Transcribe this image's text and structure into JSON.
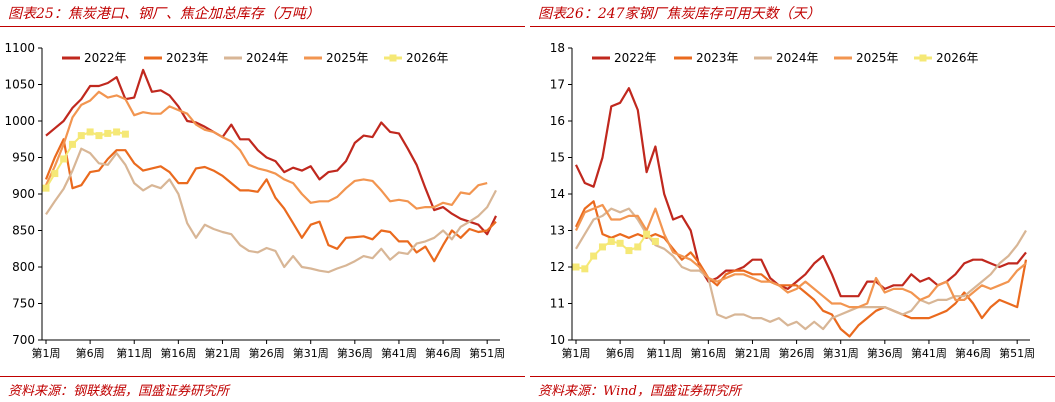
{
  "chart_data": [
    {
      "type": "line",
      "title": "图表25：焦炭港口、钢厂、焦企加总库存（万吨）",
      "source": "资料来源：钢联数据，国盛证券研究所",
      "ylim": [
        700,
        1100
      ],
      "yticks": [
        700,
        750,
        800,
        850,
        900,
        950,
        1000,
        1050,
        1100
      ],
      "xticks": [
        "第1周",
        "第6周",
        "第11周",
        "第16周",
        "第21周",
        "第26周",
        "第31周",
        "第36周",
        "第41周",
        "第46周",
        "第51周"
      ],
      "legend": "top-inside",
      "grid": false,
      "series": [
        {
          "name": "2022年",
          "color": "#c0281e",
          "values": [
            980,
            990,
            1000,
            1018,
            1030,
            1048,
            1048,
            1052,
            1060,
            1030,
            1032,
            1070,
            1040,
            1042,
            1035,
            1020,
            1000,
            998,
            992,
            985,
            978,
            995,
            975,
            975,
            960,
            950,
            945,
            930,
            936,
            932,
            938,
            920,
            930,
            932,
            945,
            970,
            980,
            978,
            998,
            985,
            983,
            962,
            940,
            908,
            878,
            882,
            873,
            866,
            862,
            858,
            845,
            870
          ]
        },
        {
          "name": "2023年",
          "color": "#ea6a1e",
          "values": [
            920,
            950,
            975,
            908,
            912,
            930,
            932,
            948,
            960,
            960,
            942,
            932,
            935,
            938,
            930,
            915,
            915,
            935,
            937,
            932,
            925,
            915,
            905,
            905,
            903,
            920,
            895,
            880,
            860,
            840,
            858,
            862,
            830,
            825,
            840,
            841,
            842,
            838,
            850,
            848,
            835,
            835,
            820,
            828,
            808,
            830,
            850,
            840,
            852,
            848,
            850,
            862
          ]
        },
        {
          "name": "2024年",
          "color": "#d8b696",
          "values": [
            872,
            890,
            907,
            932,
            962,
            956,
            942,
            940,
            956,
            940,
            915,
            905,
            912,
            908,
            920,
            900,
            860,
            840,
            858,
            852,
            848,
            845,
            830,
            822,
            820,
            826,
            822,
            800,
            815,
            800,
            798,
            795,
            793,
            798,
            802,
            808,
            815,
            812,
            825,
            810,
            820,
            818,
            832,
            835,
            840,
            850,
            838,
            855,
            862,
            870,
            882,
            905
          ]
        },
        {
          "name": "2025年",
          "color": "#f29550",
          "values": [
            912,
            938,
            968,
            1005,
            1022,
            1028,
            1040,
            1032,
            1035,
            1030,
            1008,
            1012,
            1010,
            1010,
            1020,
            1015,
            1010,
            995,
            988,
            985,
            978,
            972,
            960,
            940,
            935,
            932,
            928,
            920,
            915,
            900,
            888,
            890,
            890,
            896,
            908,
            918,
            920,
            918,
            905,
            890,
            892,
            890,
            880,
            882,
            882,
            888,
            885,
            902,
            900,
            912,
            915
          ]
        },
        {
          "name": "2026年",
          "color": "#f5e876",
          "values": [
            908,
            928,
            948,
            968,
            980,
            985,
            980,
            983,
            985,
            982
          ]
        }
      ]
    },
    {
      "type": "line",
      "title": "图表26：247家钢厂焦炭库存可用天数（天）",
      "source": "资料来源：Wind，国盛证券研究所",
      "ylim": [
        10,
        18
      ],
      "yticks": [
        10,
        11,
        12,
        13,
        14,
        15,
        16,
        17,
        18
      ],
      "xticks": [
        "第1周",
        "第6周",
        "第11周",
        "第16周",
        "第21周",
        "第26周",
        "第31周",
        "第36周",
        "第41周",
        "第46周",
        "第51周"
      ],
      "legend": "top-inside",
      "grid": false,
      "series": [
        {
          "name": "2022年",
          "color": "#c0281e",
          "values": [
            14.8,
            14.3,
            14.2,
            15.0,
            16.4,
            16.5,
            16.9,
            16.3,
            14.6,
            15.3,
            14.0,
            13.3,
            13.4,
            13.0,
            12.0,
            11.6,
            11.7,
            11.9,
            11.9,
            12.0,
            12.2,
            12.2,
            11.7,
            11.5,
            11.4,
            11.6,
            11.8,
            12.1,
            12.3,
            11.8,
            11.2,
            11.2,
            11.2,
            11.6,
            11.6,
            11.4,
            11.5,
            11.5,
            11.8,
            11.6,
            11.7,
            11.5,
            11.6,
            11.8,
            12.1,
            12.2,
            12.2,
            12.1,
            12.0,
            12.1,
            12.1,
            12.4
          ]
        },
        {
          "name": "2023年",
          "color": "#ea6a1e",
          "values": [
            13.1,
            13.6,
            13.8,
            12.9,
            12.8,
            12.9,
            12.8,
            12.9,
            12.8,
            12.9,
            12.8,
            12.5,
            12.2,
            12.4,
            12.1,
            11.7,
            11.5,
            11.8,
            11.9,
            11.9,
            11.8,
            11.8,
            11.6,
            11.5,
            11.5,
            11.5,
            11.3,
            11.1,
            10.8,
            10.7,
            10.3,
            10.1,
            10.4,
            10.6,
            10.8,
            10.9,
            10.8,
            10.7,
            10.6,
            10.6,
            10.6,
            10.7,
            10.8,
            11.0,
            11.3,
            11.0,
            10.6,
            10.9,
            11.1,
            11.0,
            10.9,
            12.2
          ]
        },
        {
          "name": "2024年",
          "color": "#d8b696",
          "values": [
            12.5,
            12.9,
            13.3,
            13.4,
            13.6,
            13.5,
            13.6,
            13.3,
            12.9,
            12.6,
            12.5,
            12.3,
            12.0,
            11.9,
            11.9,
            11.7,
            10.7,
            10.6,
            10.7,
            10.7,
            10.6,
            10.6,
            10.5,
            10.6,
            10.4,
            10.5,
            10.3,
            10.5,
            10.3,
            10.6,
            10.7,
            10.8,
            10.9,
            10.9,
            10.9,
            10.9,
            10.8,
            10.7,
            10.8,
            11.1,
            11.0,
            11.1,
            11.1,
            11.2,
            11.2,
            11.4,
            11.6,
            11.8,
            12.1,
            12.3,
            12.6,
            13.0
          ]
        },
        {
          "name": "2025年",
          "color": "#f29550",
          "values": [
            13.0,
            13.5,
            13.6,
            13.7,
            13.3,
            13.3,
            13.4,
            13.4,
            13.0,
            13.6,
            12.9,
            12.4,
            12.3,
            12.2,
            12.0,
            11.7,
            11.6,
            11.7,
            11.8,
            11.8,
            11.7,
            11.6,
            11.6,
            11.5,
            11.3,
            11.4,
            11.6,
            11.4,
            11.2,
            11.0,
            11.0,
            10.9,
            10.9,
            11.0,
            11.7,
            11.3,
            11.4,
            11.4,
            11.3,
            11.1,
            11.2,
            11.5,
            11.6,
            11.1,
            11.1,
            11.3,
            11.5,
            11.4,
            11.5,
            11.6,
            11.9,
            12.1
          ]
        },
        {
          "name": "2026年",
          "color": "#f5e876",
          "values": [
            12.0,
            11.95,
            12.3,
            12.55,
            12.7,
            12.65,
            12.45,
            12.55,
            12.9,
            12.7
          ]
        }
      ]
    }
  ]
}
